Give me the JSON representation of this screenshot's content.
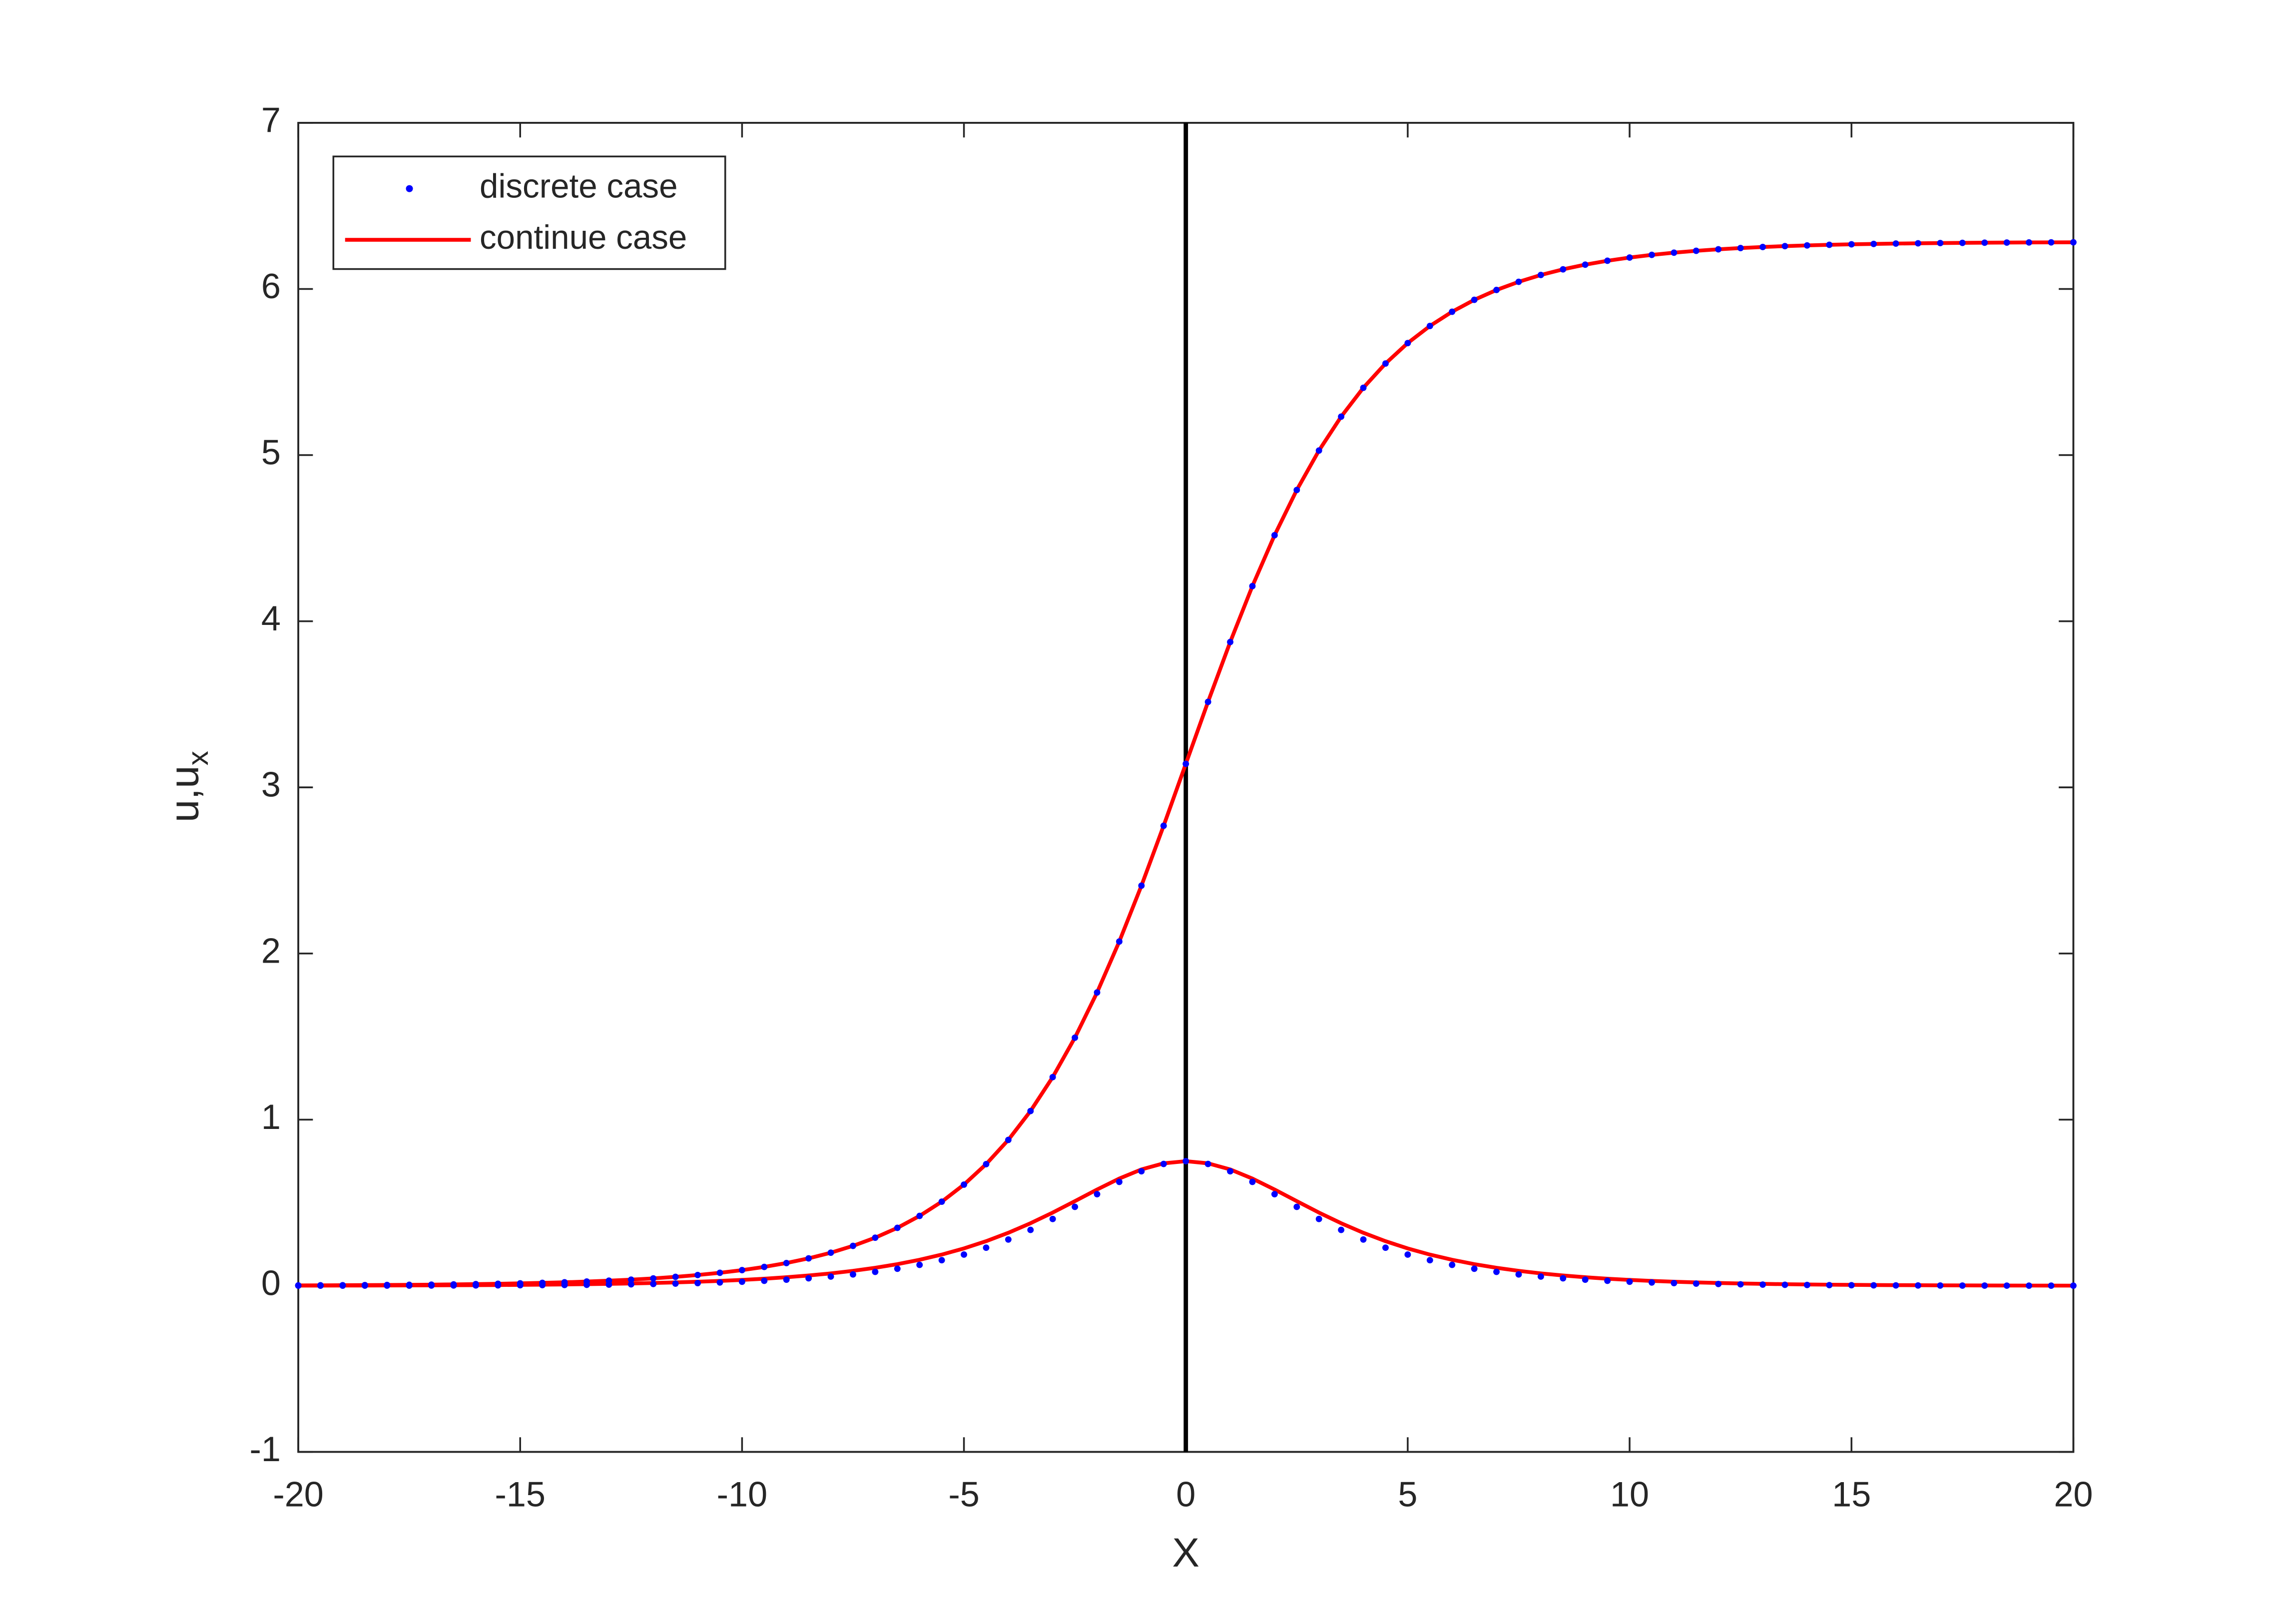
{
  "chart_data": {
    "type": "line",
    "xlabel": "X",
    "ylabel": "u,u",
    "ylabel_subscript": "x",
    "x": [
      -20,
      -19.5,
      -19,
      -18.5,
      -18,
      -17.5,
      -17,
      -16.5,
      -16,
      -15.5,
      -15,
      -14.5,
      -14,
      -13.5,
      -13,
      -12.5,
      -12,
      -11.5,
      -11,
      -10.5,
      -10,
      -9.5,
      -9,
      -8.5,
      -8,
      -7.5,
      -7,
      -6.5,
      -6,
      -5.5,
      -5,
      -4.5,
      -4,
      -3.5,
      -3,
      -2.5,
      -2,
      -1.5,
      -1,
      -0.5,
      0,
      0.5,
      1,
      1.5,
      2,
      2.5,
      3,
      3.5,
      4,
      4.5,
      5,
      5.5,
      6,
      6.5,
      7,
      7.5,
      8,
      8.5,
      9,
      9.5,
      10,
      10.5,
      11,
      11.5,
      12,
      12.5,
      13,
      13.5,
      14,
      14.5,
      15,
      15.5,
      16,
      16.5,
      17,
      17.5,
      18,
      18.5,
      19,
      19.5,
      20
    ],
    "series": [
      {
        "name": "discrete case",
        "color": "#0000ff",
        "style": "dots",
        "values": [
          [
            0.0022,
            0.0027,
            0.0032,
            0.0039,
            0.0047,
            0.0057,
            0.0068,
            0.0082,
            0.0099,
            0.012,
            0.0144,
            0.0174,
            0.021,
            0.0253,
            0.0306,
            0.0368,
            0.0444,
            0.0536,
            0.0647,
            0.078,
            0.0941,
            0.1134,
            0.1368,
            0.165,
            0.199,
            0.2401,
            0.2893,
            0.3486,
            0.4203,
            0.5061,
            0.6089,
            0.7319,
            0.878,
            1.0517,
            1.2558,
            1.4932,
            1.7654,
            2.0719,
            2.4084,
            2.7688,
            3.1416,
            3.5144,
            3.8748,
            4.2113,
            4.5178,
            4.79,
            5.0274,
            5.2315,
            5.4052,
            5.5513,
            5.6743,
            5.7771,
            5.8629,
            5.9346,
            5.9939,
            6.0431,
            6.0842,
            6.1182,
            6.1464,
            6.1698,
            6.1891,
            6.2052,
            6.2185,
            6.2296,
            6.2388,
            6.2464,
            6.2526,
            6.2579,
            6.2622,
            6.2658,
            6.2688,
            6.2712,
            6.2733,
            6.275,
            6.2764,
            6.2775,
            6.2785,
            6.2793,
            6.28,
            6.2805,
            6.281
          ],
          [
            0.0005,
            0.0006,
            0.0007,
            0.0008,
            0.0009,
            0.0011,
            0.0014,
            0.0017,
            0.002,
            0.0026,
            0.0031,
            0.0038,
            0.0047,
            0.0057,
            0.0071,
            0.0087,
            0.0107,
            0.0131,
            0.0161,
            0.0198,
            0.0242,
            0.0298,
            0.0367,
            0.0451,
            0.0555,
            0.0682,
            0.0837,
            0.1026,
            0.1257,
            0.1538,
            0.1877,
            0.2291,
            0.2784,
            0.3361,
            0.402,
            0.4749,
            0.5513,
            0.6254,
            0.6892,
            0.7333,
            0.75,
            0.7333,
            0.6892,
            0.6254,
            0.5513,
            0.4749,
            0.402,
            0.3361,
            0.2784,
            0.2291,
            0.1877,
            0.1538,
            0.1257,
            0.1026,
            0.0837,
            0.0682,
            0.0555,
            0.0451,
            0.0367,
            0.0298,
            0.0242,
            0.0198,
            0.0161,
            0.0131,
            0.0107,
            0.0087,
            0.0071,
            0.0057,
            0.0047,
            0.0038,
            0.0031,
            0.0026,
            0.002,
            0.0017,
            0.0014,
            0.0011,
            0.0009,
            0.0008,
            0.0007,
            0.0006,
            0.0005
          ]
        ]
      },
      {
        "name": "continue case",
        "color": "#ff0000",
        "style": "line",
        "values": [
          [
            0.0022,
            0.0027,
            0.0032,
            0.0039,
            0.0047,
            0.0057,
            0.0068,
            0.0082,
            0.0099,
            0.012,
            0.0144,
            0.0174,
            0.021,
            0.0253,
            0.0306,
            0.0368,
            0.0444,
            0.0536,
            0.0647,
            0.078,
            0.0941,
            0.1134,
            0.1368,
            0.165,
            0.199,
            0.2401,
            0.2893,
            0.3486,
            0.4203,
            0.5061,
            0.6089,
            0.7319,
            0.878,
            1.0517,
            1.2558,
            1.4932,
            1.7654,
            2.0719,
            2.4084,
            2.7688,
            3.1416,
            3.5144,
            3.8748,
            4.2113,
            4.5178,
            4.79,
            5.0274,
            5.2315,
            5.4052,
            5.5513,
            5.6743,
            5.7771,
            5.8629,
            5.9346,
            5.9939,
            6.0431,
            6.0842,
            6.1182,
            6.1464,
            6.1698,
            6.1891,
            6.2052,
            6.2185,
            6.2296,
            6.2388,
            6.2464,
            6.2526,
            6.2579,
            6.2622,
            6.2658,
            6.2688,
            6.2712,
            6.2733,
            6.275,
            6.2764,
            6.2775,
            6.2785,
            6.2793,
            6.28,
            6.2805,
            6.281
          ],
          [
            0.0008,
            0.001,
            0.0012,
            0.0015,
            0.0018,
            0.0021,
            0.0026,
            0.0031,
            0.0037,
            0.0045,
            0.0054,
            0.0065,
            0.0079,
            0.0095,
            0.0115,
            0.0138,
            0.0167,
            0.0201,
            0.0242,
            0.0292,
            0.0353,
            0.0425,
            0.0513,
            0.0618,
            0.0745,
            0.0898,
            0.1081,
            0.1301,
            0.1564,
            0.1877,
            0.2247,
            0.2683,
            0.3188,
            0.3764,
            0.4405,
            0.5093,
            0.5793,
            0.6452,
            0.7002,
            0.737,
            0.75,
            0.737,
            0.7002,
            0.6452,
            0.5793,
            0.5093,
            0.4405,
            0.3764,
            0.3188,
            0.2683,
            0.2247,
            0.1877,
            0.1564,
            0.1301,
            0.1081,
            0.0898,
            0.0745,
            0.0618,
            0.0513,
            0.0425,
            0.0353,
            0.0292,
            0.0242,
            0.0201,
            0.0167,
            0.0138,
            0.0115,
            0.0095,
            0.0079,
            0.0065,
            0.0054,
            0.0045,
            0.0037,
            0.0031,
            0.0026,
            0.0021,
            0.0018,
            0.0015,
            0.0012,
            0.001,
            0.0008
          ]
        ]
      }
    ],
    "vline": {
      "x": 0,
      "color": "#000000"
    },
    "xlim": [
      -20,
      20
    ],
    "ylim": [
      -1,
      7
    ],
    "xticks": [
      -20,
      -15,
      -10,
      -5,
      0,
      5,
      10,
      15,
      20
    ],
    "yticks": [
      -1,
      0,
      1,
      2,
      3,
      4,
      5,
      6,
      7
    ],
    "grid": false,
    "legend": "upper-left"
  }
}
